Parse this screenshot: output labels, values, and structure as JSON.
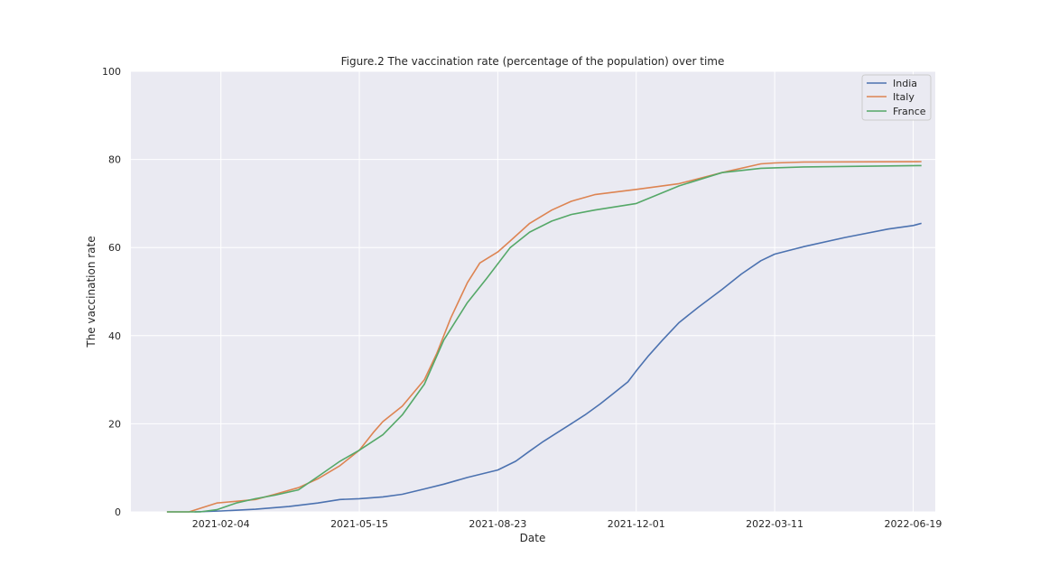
{
  "chart_data": {
    "type": "line",
    "title": "Figure.2 The vaccination rate (percentage of the population) over time",
    "xlabel": "Date",
    "ylabel": "The vaccination rate",
    "x_axis_kind": "date",
    "xlim": [
      "2020-12-01",
      "2022-07-05"
    ],
    "ylim": [
      0,
      100
    ],
    "x_ticks": [
      "2021-02-04",
      "2021-05-15",
      "2021-08-23",
      "2021-12-01",
      "2022-03-11",
      "2022-06-19"
    ],
    "y_ticks": [
      0,
      20,
      40,
      60,
      80,
      100
    ],
    "grid": true,
    "legend_position": "top-right",
    "series": [
      {
        "name": "India",
        "color": "#4c72b0",
        "points": [
          [
            "2021-01-16",
            0
          ],
          [
            "2021-02-04",
            0.2
          ],
          [
            "2021-03-01",
            0.6
          ],
          [
            "2021-03-25",
            1.2
          ],
          [
            "2021-04-15",
            2.0
          ],
          [
            "2021-05-01",
            2.8
          ],
          [
            "2021-05-15",
            3.0
          ],
          [
            "2021-06-01",
            3.4
          ],
          [
            "2021-06-15",
            4.0
          ],
          [
            "2021-07-01",
            5.2
          ],
          [
            "2021-07-15",
            6.3
          ],
          [
            "2021-08-01",
            7.8
          ],
          [
            "2021-08-23",
            9.5
          ],
          [
            "2021-09-05",
            11.5
          ],
          [
            "2021-09-15",
            13.8
          ],
          [
            "2021-09-25",
            16.0
          ],
          [
            "2021-10-05",
            18.0
          ],
          [
            "2021-10-15",
            20.0
          ],
          [
            "2021-10-25",
            22.0
          ],
          [
            "2021-11-05",
            24.5
          ],
          [
            "2021-11-15",
            27.0
          ],
          [
            "2021-11-25",
            29.5
          ],
          [
            "2021-12-01",
            32.0
          ],
          [
            "2021-12-10",
            35.5
          ],
          [
            "2021-12-20",
            39.0
          ],
          [
            "2022-01-01",
            43.0
          ],
          [
            "2022-01-15",
            46.5
          ],
          [
            "2022-02-01",
            50.5
          ],
          [
            "2022-02-15",
            54.0
          ],
          [
            "2022-03-01",
            57.0
          ],
          [
            "2022-03-11",
            58.5
          ],
          [
            "2022-04-01",
            60.2
          ],
          [
            "2022-05-01",
            62.3
          ],
          [
            "2022-06-01",
            64.2
          ],
          [
            "2022-06-19",
            65.0
          ],
          [
            "2022-06-25",
            65.5
          ]
        ]
      },
      {
        "name": "Italy",
        "color": "#dd8452",
        "points": [
          [
            "2020-12-27",
            0
          ],
          [
            "2021-01-12",
            0
          ],
          [
            "2021-01-22",
            1.0
          ],
          [
            "2021-02-01",
            2.0
          ],
          [
            "2021-02-15",
            2.4
          ],
          [
            "2021-03-01",
            2.8
          ],
          [
            "2021-03-15",
            4.0
          ],
          [
            "2021-04-01",
            5.5
          ],
          [
            "2021-04-15",
            7.5
          ],
          [
            "2021-05-01",
            10.5
          ],
          [
            "2021-05-15",
            14.0
          ],
          [
            "2021-05-25",
            18.0
          ],
          [
            "2021-06-01",
            20.5
          ],
          [
            "2021-06-15",
            24.0
          ],
          [
            "2021-07-01",
            30.0
          ],
          [
            "2021-07-10",
            36.0
          ],
          [
            "2021-07-20",
            44.0
          ],
          [
            "2021-08-01",
            52.0
          ],
          [
            "2021-08-10",
            56.5
          ],
          [
            "2021-08-23",
            59.0
          ],
          [
            "2021-09-01",
            61.5
          ],
          [
            "2021-09-15",
            65.5
          ],
          [
            "2021-10-01",
            68.5
          ],
          [
            "2021-10-15",
            70.5
          ],
          [
            "2021-11-01",
            72.0
          ],
          [
            "2021-12-01",
            73.2
          ],
          [
            "2022-01-01",
            74.5
          ],
          [
            "2022-02-01",
            77.0
          ],
          [
            "2022-03-01",
            79.0
          ],
          [
            "2022-03-11",
            79.2
          ],
          [
            "2022-04-01",
            79.4
          ],
          [
            "2022-06-25",
            79.5
          ]
        ]
      },
      {
        "name": "France",
        "color": "#55a868",
        "points": [
          [
            "2020-12-27",
            0
          ],
          [
            "2021-01-20",
            0
          ],
          [
            "2021-02-01",
            0.5
          ],
          [
            "2021-02-15",
            2.0
          ],
          [
            "2021-03-01",
            3.0
          ],
          [
            "2021-03-15",
            3.8
          ],
          [
            "2021-04-01",
            5.0
          ],
          [
            "2021-04-15",
            8.0
          ],
          [
            "2021-05-01",
            11.5
          ],
          [
            "2021-05-15",
            14.0
          ],
          [
            "2021-06-01",
            17.5
          ],
          [
            "2021-06-15",
            22.0
          ],
          [
            "2021-07-01",
            29.0
          ],
          [
            "2021-07-15",
            39.0
          ],
          [
            "2021-08-01",
            47.5
          ],
          [
            "2021-08-15",
            53.0
          ],
          [
            "2021-09-01",
            60.0
          ],
          [
            "2021-09-15",
            63.5
          ],
          [
            "2021-10-01",
            66.0
          ],
          [
            "2021-10-15",
            67.5
          ],
          [
            "2021-11-01",
            68.5
          ],
          [
            "2021-12-01",
            70.0
          ],
          [
            "2022-01-01",
            74.0
          ],
          [
            "2022-02-01",
            77.0
          ],
          [
            "2022-03-01",
            78.0
          ],
          [
            "2022-03-11",
            78.1
          ],
          [
            "2022-04-01",
            78.3
          ],
          [
            "2022-06-25",
            78.6
          ]
        ]
      }
    ]
  }
}
